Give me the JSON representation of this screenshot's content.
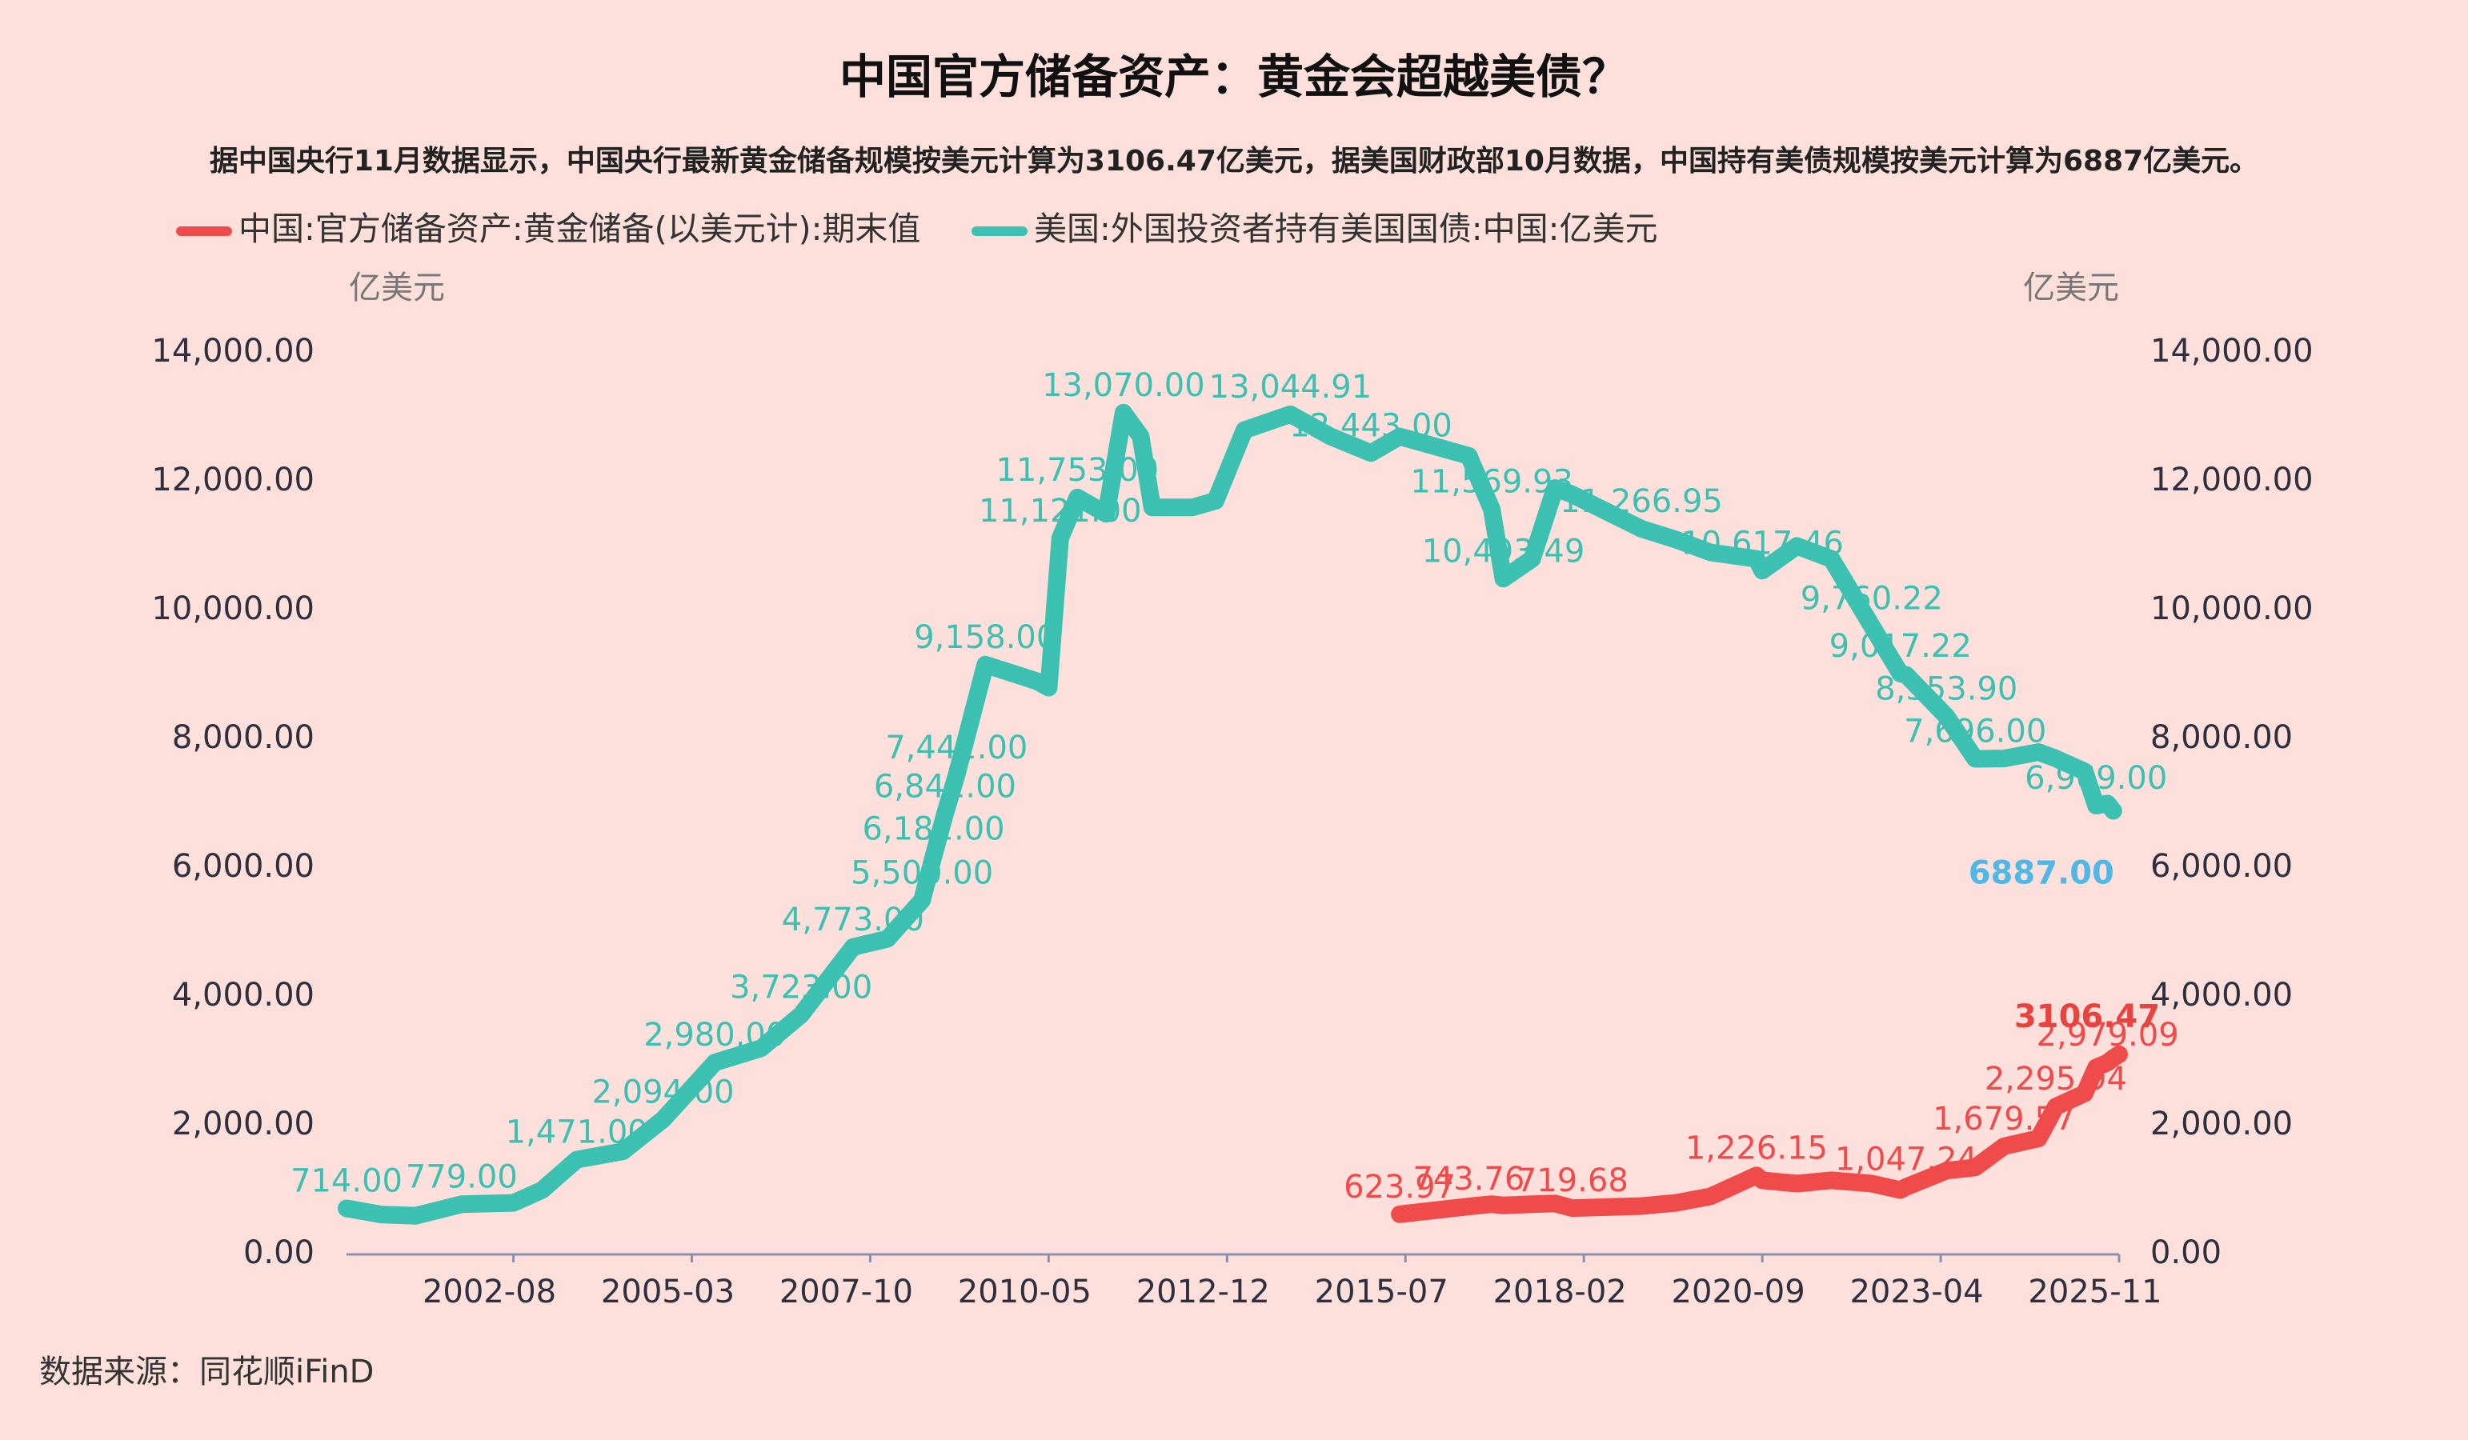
{
  "chart_data": {
    "type": "line",
    "title": "中国官方储备资产：黄金会超越美债？",
    "subtitle": "据中国央行11月数据显示，中国央行最新黄金储备规模按美元计算为3106.47亿美元，据美国财政部10月数据，中国持有美债规模按美元计算为6887亿美元。",
    "y_label": "亿美元",
    "y2_label": "亿美元",
    "source": "数据来源：同花顺iFinD",
    "x": [
      "2000-03",
      "2000-09",
      "2001-03",
      "2001-11",
      "2002-08",
      "2003-01",
      "2003-07",
      "2004-03",
      "2004-10",
      "2005-07",
      "2006-03",
      "2006-10",
      "2007-07",
      "2008-01",
      "2008-07",
      "2008-09",
      "2008-11",
      "2009-01",
      "2009-06",
      "2010-03",
      "2010-05",
      "2010-07",
      "2010-10",
      "2011-03",
      "2011-06",
      "2011-09",
      "2011-11",
      "2012-06",
      "2012-10",
      "2013-03",
      "2013-11",
      "2014-06",
      "2015-01",
      "2015-06",
      "2016-06",
      "2016-10",
      "2016-12",
      "2017-05",
      "2017-09",
      "2017-12",
      "2018-12",
      "2019-06",
      "2019-12",
      "2020-08",
      "2020-09",
      "2021-03",
      "2021-09",
      "2022-04",
      "2022-09",
      "2022-10",
      "2023-05",
      "2023-10",
      "2024-03",
      "2024-09",
      "2024-12",
      "2025-05",
      "2025-07",
      "2025-09",
      "2025-10",
      "2025-11"
    ],
    "xlim": [
      "2000-03",
      "2025-11"
    ],
    "xticks": [
      "2002-08",
      "2005-03",
      "2007-10",
      "2010-05",
      "2012-12",
      "2015-07",
      "2018-02",
      "2020-09",
      "2023-04",
      "2025-11"
    ],
    "series": [
      {
        "name": "中国:官方储备资产:黄金储备(以美元计):期末值",
        "color": "#ef4b4b",
        "highlight_color": "#e8433f",
        "values": [
          null,
          null,
          null,
          null,
          null,
          null,
          null,
          null,
          null,
          null,
          null,
          null,
          null,
          null,
          null,
          null,
          null,
          null,
          null,
          null,
          null,
          null,
          null,
          null,
          null,
          null,
          null,
          null,
          null,
          null,
          null,
          null,
          null,
          623.97,
          743.76,
          780,
          760,
          780,
          790,
          719.68,
          750,
          800,
          900,
          1226.15,
          1150,
          1100,
          1150,
          1100,
          1000,
          1047.24,
          1300,
          1350,
          1679.57,
          1800,
          2295.94,
          2500,
          2900,
          2979.09,
          3050,
          3106.47
        ],
        "value_labels": [
          null,
          null,
          null,
          null,
          null,
          null,
          null,
          null,
          null,
          null,
          null,
          null,
          null,
          null,
          null,
          null,
          null,
          null,
          null,
          null,
          null,
          null,
          null,
          null,
          null,
          null,
          null,
          null,
          null,
          null,
          null,
          null,
          null,
          "623.97",
          "743.76",
          null,
          null,
          null,
          null,
          "719.68",
          null,
          null,
          null,
          "1,226.15",
          null,
          null,
          null,
          null,
          null,
          "1,047.24",
          null,
          null,
          "1,679.57",
          null,
          "2,295.94",
          null,
          null,
          "2,979.09",
          null,
          "3106.47"
        ]
      },
      {
        "name": "美国:外国投资者持有美国国债:中国:亿美元",
        "color": "#3cc0b2",
        "highlight_color": "#4fb8e6",
        "axis": "y2",
        "values": [
          714,
          620,
          600,
          779,
          800,
          1000,
          1471,
          1600,
          2094,
          2980,
          3200,
          3723,
          4773,
          4900,
          5500,
          6182,
          6841,
          7442,
          9158,
          8900,
          8800,
          11121,
          11753,
          11500,
          13070,
          12700,
          11600,
          11600,
          11700,
          12800,
          13044.91,
          12700,
          12443,
          12700,
          12400,
          11569.93,
          10493.49,
          10800,
          11900,
          11800,
          11266.95,
          11100,
          10900,
          10800,
          10617.46,
          11000,
          10800,
          9760.22,
          9017.22,
          9000,
          8353.9,
          7696,
          7700,
          7800,
          7700,
          7500,
          6969,
          7000,
          6887,
          null
        ],
        "value_labels": [
          "714.00",
          null,
          null,
          "779.00",
          null,
          null,
          "1,471.00",
          null,
          "2,094.00",
          "2,980.00",
          null,
          "3,723.00",
          "4,773.00",
          null,
          "5,500.00",
          "6,182.00",
          "6,841.00",
          "7,442.00",
          "9,158.00",
          null,
          null,
          "11,121.00",
          "11,753.00",
          null,
          "13,070.00",
          null,
          null,
          null,
          null,
          null,
          "13,044.91",
          null,
          "12,443.00",
          null,
          null,
          "11,569.93",
          "10,493.49",
          null,
          null,
          null,
          "11,266.95",
          null,
          null,
          null,
          "10,617.46",
          null,
          null,
          "9,760.22",
          "9,017.22",
          null,
          "8,353.90",
          "7,696.00",
          null,
          null,
          null,
          null,
          "6,969.00",
          null,
          "6887.00",
          null
        ]
      }
    ],
    "ylim": [
      0,
      14000
    ],
    "yticks": [
      {
        "value": 0,
        "label": "0.00"
      },
      {
        "value": 2000,
        "label": "2,000.00"
      },
      {
        "value": 4000,
        "label": "4,000.00"
      },
      {
        "value": 6000,
        "label": "6,000.00"
      },
      {
        "value": 8000,
        "label": "8,000.00"
      },
      {
        "value": 10000,
        "label": "10,000.00"
      },
      {
        "value": 12000,
        "label": "12,000.00"
      },
      {
        "value": 14000,
        "label": "14,000.00"
      }
    ],
    "y2lim": [
      0,
      14000
    ],
    "y2ticks": [
      {
        "value": 0,
        "label": "0.00"
      },
      {
        "value": 2000,
        "label": "2,000.00"
      },
      {
        "value": 4000,
        "label": "4,000.00"
      },
      {
        "value": 6000,
        "label": "6,000.00"
      },
      {
        "value": 8000,
        "label": "8,000.00"
      },
      {
        "value": 10000,
        "label": "10,000.00"
      },
      {
        "value": 12000,
        "label": "12,000.00"
      },
      {
        "value": 14000,
        "label": "14,000.00"
      }
    ],
    "grid": false
  }
}
